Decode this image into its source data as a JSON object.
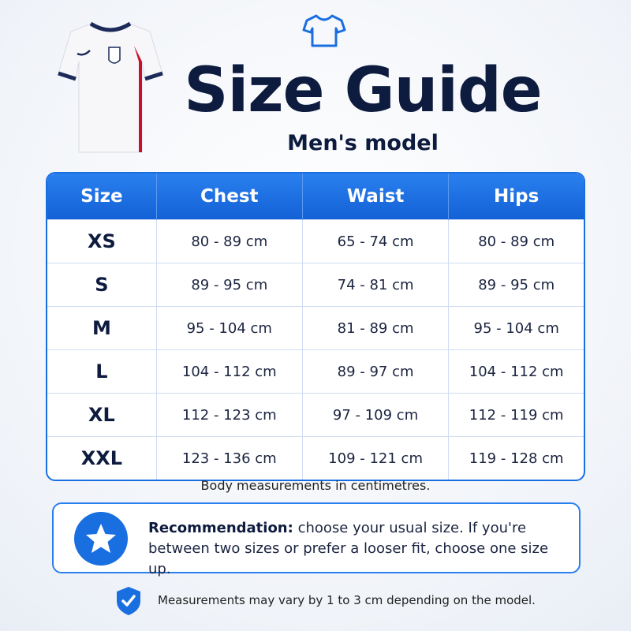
{
  "header": {
    "title": "Size Guide",
    "subtitle": "Men's model"
  },
  "table": {
    "columns": [
      "Size",
      "Chest",
      "Waist",
      "Hips"
    ],
    "rows": [
      [
        "XS",
        "80 - 89 cm",
        "65 - 74 cm",
        "80 - 89 cm"
      ],
      [
        "S",
        "89 - 95 cm",
        "74 - 81 cm",
        "89 - 95 cm"
      ],
      [
        "M",
        "95 - 104 cm",
        "81 - 89 cm",
        "95 - 104 cm"
      ],
      [
        "L",
        "104 - 112 cm",
        "89 - 97 cm",
        "104 - 112 cm"
      ],
      [
        "XL",
        "112 - 123 cm",
        "97 - 109 cm",
        "112 - 119 cm"
      ],
      [
        "XXL",
        "123 - 136 cm",
        "109 - 121 cm",
        "119 - 128 cm"
      ]
    ]
  },
  "note": "Body measurements in centimetres.",
  "recommendation": {
    "label": "Recommendation:",
    "text": "choose your usual size. If you're between two sizes or prefer a looser fit, choose one size up."
  },
  "disclaimer": "Measurements may vary by 1 to 3 cm depending on the model."
}
